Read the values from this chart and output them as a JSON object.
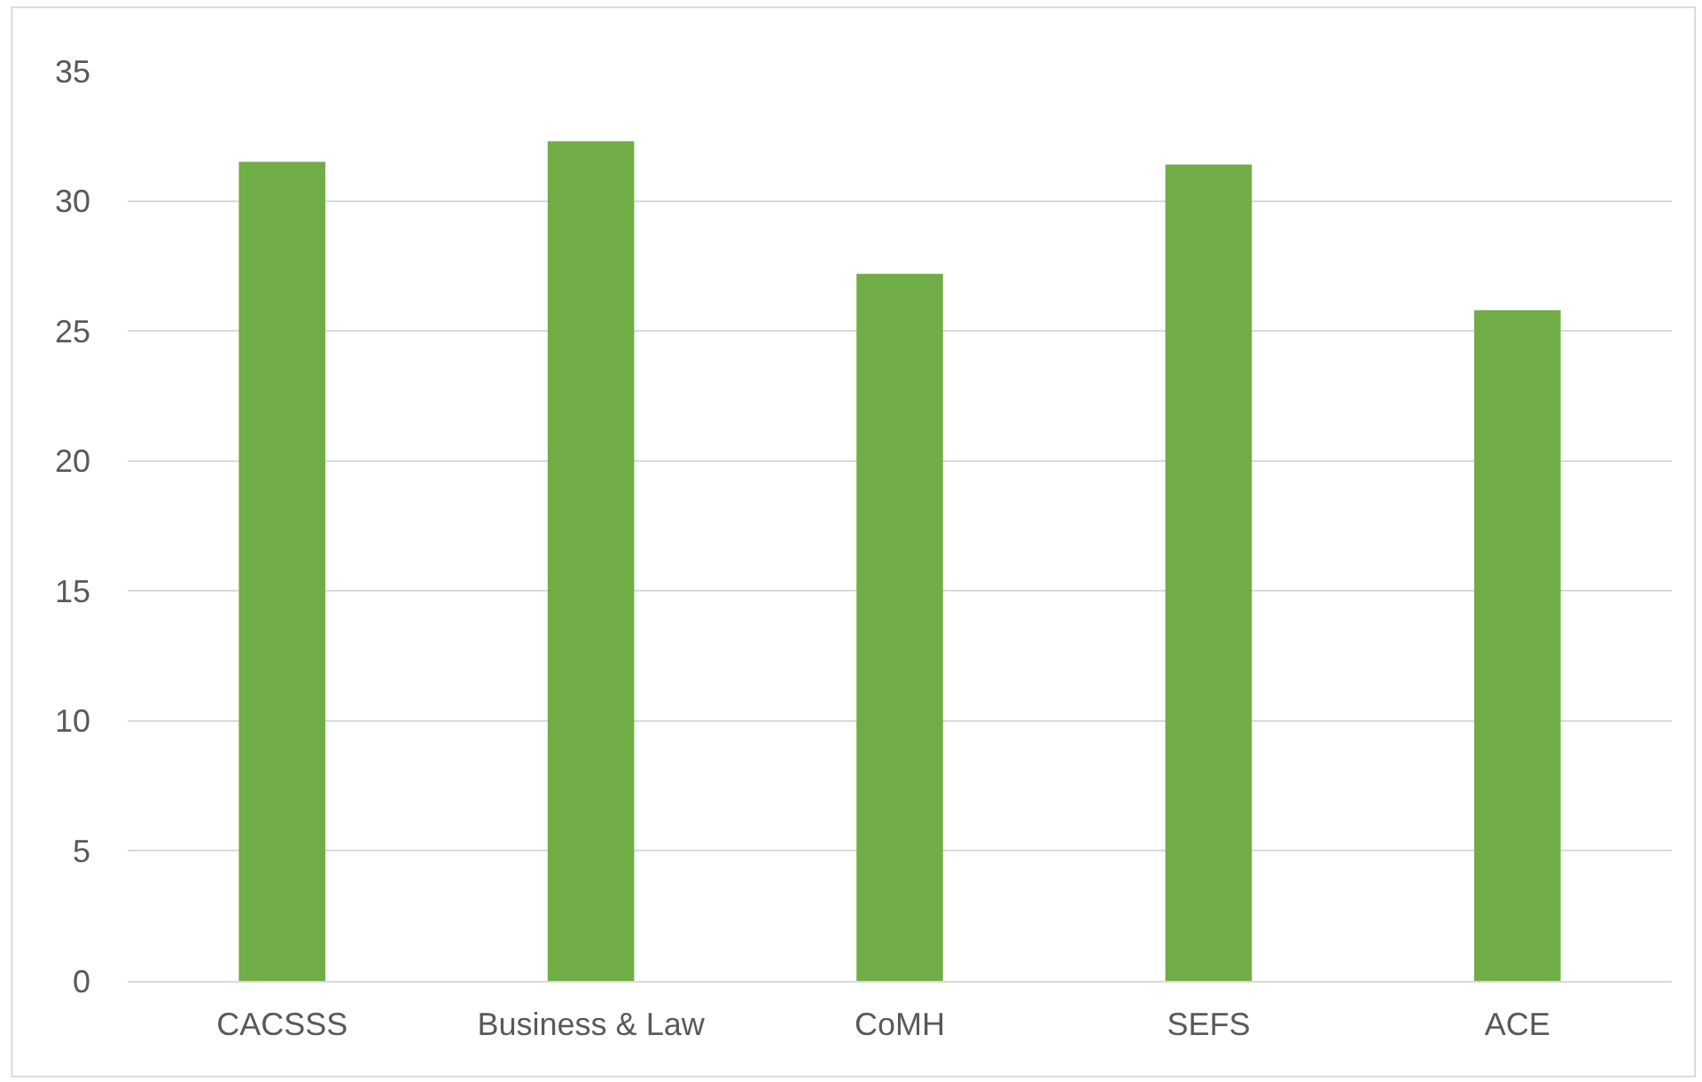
{
  "chart_data": {
    "type": "bar",
    "categories": [
      "CACSSS",
      "Business & Law",
      "CoMH",
      "SEFS",
      "ACE"
    ],
    "values": [
      31.5,
      32.3,
      27.2,
      31.4,
      25.8
    ],
    "color": "#70ad47",
    "ylim": [
      0,
      35
    ],
    "yticks": [
      0,
      5,
      10,
      15,
      20,
      25,
      30,
      35
    ],
    "grid": "y"
  }
}
